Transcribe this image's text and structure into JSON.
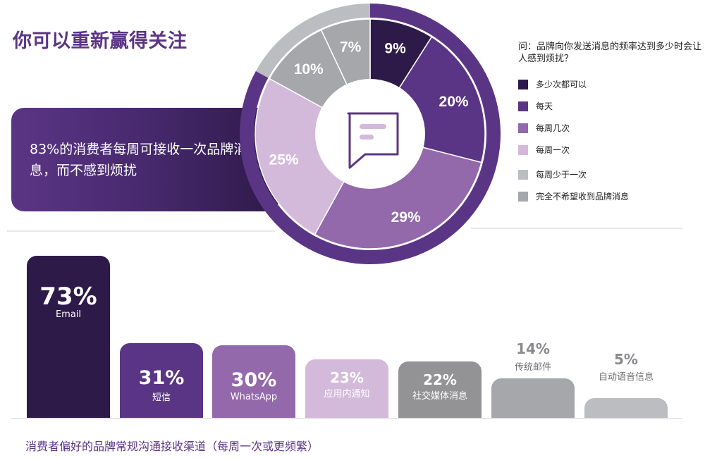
{
  "header": {
    "title": "你可以重新赢得关注"
  },
  "callout": {
    "text": "83%的消费者每周可接收一次品牌消息，而不感到烦扰"
  },
  "legend": {
    "question": "问：品牌向你发送消息的频率达到多少时会让人感到烦扰？",
    "items": [
      {
        "label": "多少次都可以",
        "color": "#2e1a48"
      },
      {
        "label": "每天",
        "color": "#5b3585"
      },
      {
        "label": "每周几次",
        "color": "#9369ab"
      },
      {
        "label": "每周一次",
        "color": "#d3bada"
      },
      {
        "label": "每周少于一次",
        "color": "#bcbdc1"
      },
      {
        "label": "完全不希望收到品牌消息",
        "color": "#a6a7aa"
      }
    ]
  },
  "center_icon": "chat-bubble-icon",
  "caption": "消费者偏好的品牌常规沟通接收渠道（每周一次或更频繁）",
  "chart_data": [
    {
      "type": "pie",
      "title": "问：品牌向你发送消息的频率达到多少时会让人感到烦扰？",
      "categories": [
        "多少次都可以",
        "每天",
        "每周几次",
        "每周一次",
        "完全不希望收到品牌消息",
        "每周少于一次"
      ],
      "values": [
        9,
        20,
        29,
        25,
        10,
        7
      ],
      "labels": [
        "9%",
        "20%",
        "29%",
        "25%",
        "10%",
        "7%"
      ],
      "colors": [
        "#2e1a48",
        "#5b3585",
        "#9369ab",
        "#d3bada",
        "#a6a7aa",
        "#a6a7aa"
      ],
      "donut": true,
      "outer_ring": {
        "purple_share": 83,
        "gray_share": 17
      },
      "legend_position": "right"
    },
    {
      "type": "bar",
      "title": "消费者偏好的品牌常规沟通接收渠道（每周一次或更频繁）",
      "categories": [
        "Email",
        "短信",
        "WhatsApp",
        "应用内通知",
        "社交媒体消息",
        "传统邮件",
        "自动语音信息"
      ],
      "values": [
        73,
        31,
        30,
        23,
        22,
        14,
        5
      ],
      "labels": [
        "73%",
        "31%",
        "30%",
        "23%",
        "22%",
        "14%",
        "5%"
      ],
      "colors": [
        "#2e1a48",
        "#5b3585",
        "#9369ab",
        "#d3bada",
        "#939396",
        "#a6a7aa",
        "#bcbdc1"
      ],
      "xlabel": "",
      "ylabel": "",
      "ylim": [
        0,
        80
      ],
      "grid": false
    }
  ]
}
